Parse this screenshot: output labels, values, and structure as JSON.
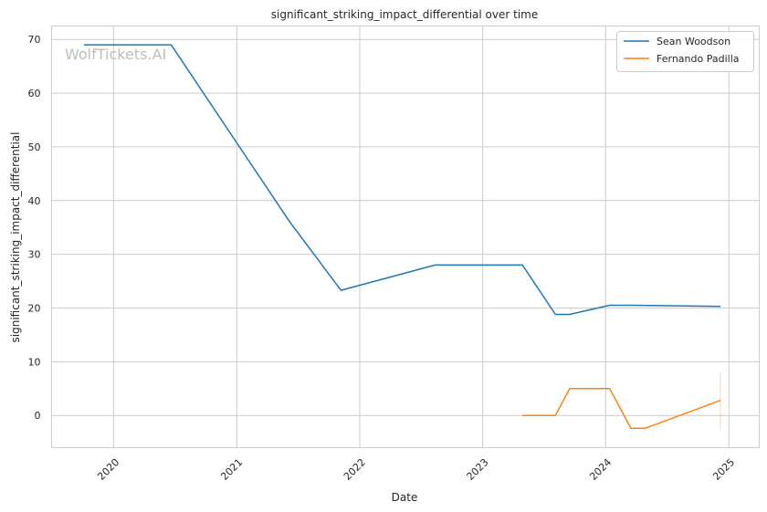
{
  "chart_data": {
    "type": "line",
    "title": "significant_striking_impact_differential over time",
    "xlabel": "Date",
    "ylabel": "significant_striking_impact_differential",
    "watermark": "WolfTickets.AI",
    "xlim": [
      "2019-07-01",
      "2025-04-01"
    ],
    "ylim": [
      -6,
      72.5
    ],
    "x_ticks": [
      "2020-01-01",
      "2021-01-01",
      "2022-01-01",
      "2023-01-01",
      "2024-01-01",
      "2025-01-01"
    ],
    "x_tick_labels": [
      "2020",
      "2021",
      "2022",
      "2023",
      "2024",
      "2025"
    ],
    "y_ticks": [
      0,
      10,
      20,
      30,
      40,
      50,
      60,
      70
    ],
    "y_tick_labels": [
      "0",
      "10",
      "20",
      "30",
      "40",
      "50",
      "60",
      "70"
    ],
    "grid": true,
    "legend_position": "top-right",
    "series": [
      {
        "name": "Sean Woodson",
        "color": "#1f77b4",
        "points": [
          {
            "x": "2019-10-05",
            "y": 69.0
          },
          {
            "x": "2020-06-20",
            "y": 69.0
          },
          {
            "x": "2021-06-05",
            "y": 36.2
          },
          {
            "x": "2021-11-06",
            "y": 23.3
          },
          {
            "x": "2022-08-13",
            "y": 28.0
          },
          {
            "x": "2023-04-29",
            "y": 28.0
          },
          {
            "x": "2023-08-05",
            "y": 18.8
          },
          {
            "x": "2023-09-16",
            "y": 18.8
          },
          {
            "x": "2024-01-13",
            "y": 20.5
          },
          {
            "x": "2024-03-16",
            "y": 20.5
          },
          {
            "x": "2024-12-07",
            "y": 20.3
          }
        ]
      },
      {
        "name": "Fernando Padilla",
        "color": "#ff7f0e",
        "points": [
          {
            "x": "2023-04-29",
            "y": 0.0
          },
          {
            "x": "2023-08-05",
            "y": 0.0
          },
          {
            "x": "2023-09-16",
            "y": 5.0
          },
          {
            "x": "2024-01-13",
            "y": 5.0
          },
          {
            "x": "2024-03-16",
            "y": -2.4
          },
          {
            "x": "2024-04-27",
            "y": -2.4
          },
          {
            "x": "2024-12-07",
            "y": 2.8
          }
        ],
        "error_band": {
          "x": "2024-12-07",
          "low": -2.7,
          "high": 8.0
        }
      }
    ]
  }
}
